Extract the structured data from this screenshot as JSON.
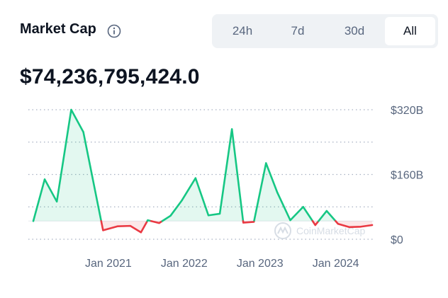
{
  "header": {
    "title": "Market Cap",
    "info_icon": "info-icon"
  },
  "range_tabs": [
    {
      "label": "24h",
      "active": false
    },
    {
      "label": "7d",
      "active": false
    },
    {
      "label": "30d",
      "active": false
    },
    {
      "label": "All",
      "active": true
    }
  ],
  "value": "$74,236,795,424.0",
  "watermark": "CoinMarketCap",
  "colors": {
    "up": "#16c784",
    "down": "#ea3943",
    "text_primary": "#0d1421",
    "text_secondary": "#58667e",
    "tab_bg": "#eff2f5"
  },
  "chart_data": {
    "type": "area",
    "title": "Market Cap",
    "baseline_value": 45,
    "ylim": [
      0,
      320
    ],
    "yticks": [
      {
        "value": 0,
        "label": "$0"
      },
      {
        "value": 160,
        "label": "$160B"
      },
      {
        "value": 320,
        "label": "$320B"
      }
    ],
    "xlim": [
      2020.06,
      2024.53
    ],
    "xticks": [
      {
        "value": 2021.05,
        "label": "Jan 2021"
      },
      {
        "value": 2022.05,
        "label": "Jan 2022"
      },
      {
        "value": 2023.05,
        "label": "Jan 2023"
      },
      {
        "value": 2024.05,
        "label": "Jan 2024"
      }
    ],
    "grid": true,
    "legend": "none",
    "series": [
      {
        "x": [
          2020.06,
          2020.21,
          2020.37,
          2020.56,
          2020.72,
          2020.98,
          2021.17,
          2021.34,
          2021.48,
          2021.57,
          2021.72,
          2021.87,
          2022.02,
          2022.2,
          2022.37,
          2022.52,
          2022.68,
          2022.83,
          2022.97,
          2023.13,
          2023.28,
          2023.45,
          2023.62,
          2023.78,
          2023.93,
          2024.08,
          2024.23,
          2024.38,
          2024.53
        ],
        "values": [
          45,
          148,
          93,
          320,
          265,
          22,
          32,
          33,
          17,
          47,
          40,
          58,
          96,
          151,
          59,
          63,
          272,
          41,
          43,
          188,
          115,
          47,
          80,
          35,
          70,
          38,
          30,
          31,
          35
        ]
      }
    ]
  }
}
